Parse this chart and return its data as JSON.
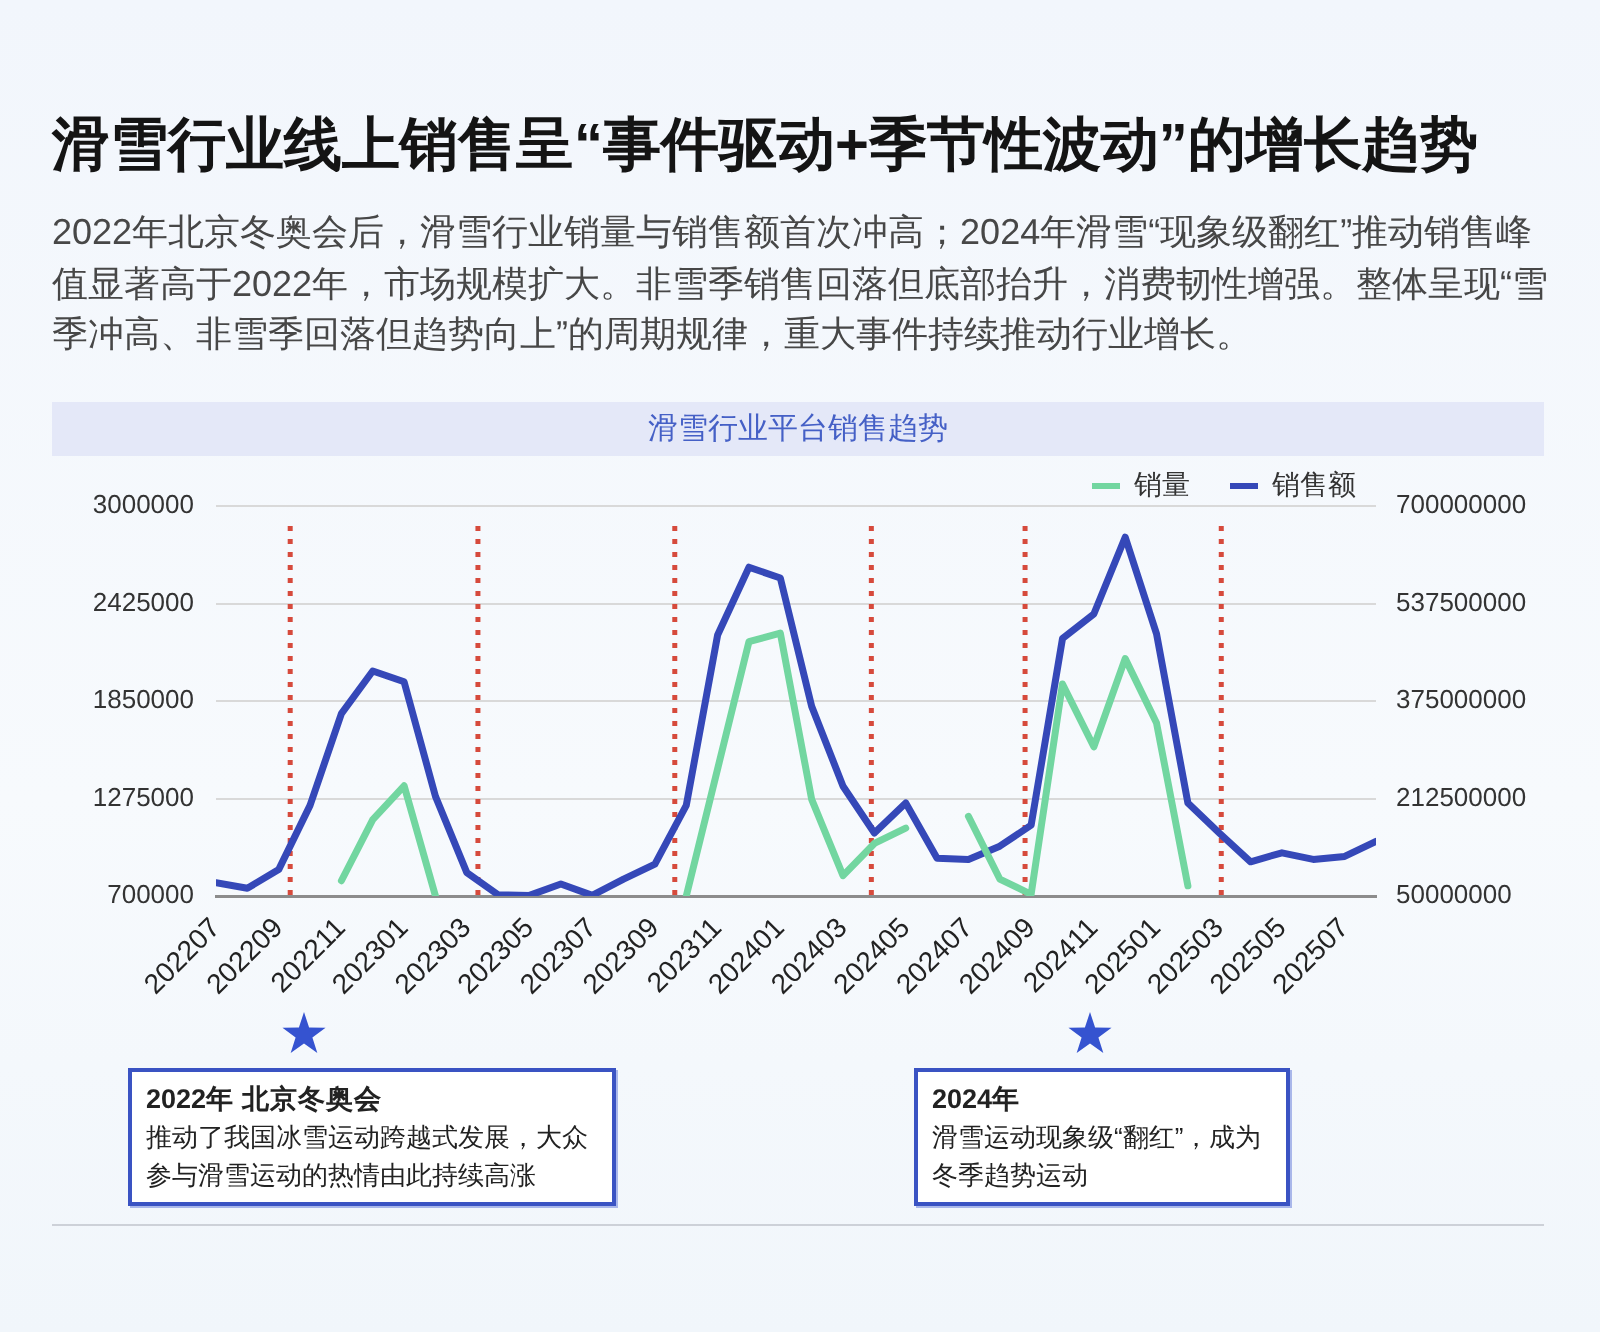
{
  "chart_data": {
    "type": "line",
    "title": "滑雪行业线上销售呈“事件驱动+季节性波动”的增长趋势",
    "subtitle": "2022年北京冬奥会后，滑雪行业销量与销售额首次冲高；2024年滑雪“现象级翻红”推动销售峰值显著高于2022年，市场规模扩大。非雪季销售回落但底部抬升，消费韧性增强。整体呈现“雪季冲高、非雪季回落但趋势向上”的周期规律，重大事件持续推动行业增长。",
    "x": [
      "2022-07",
      "2022-08",
      "2022-09",
      "2022-10",
      "2022-11",
      "2022-12",
      "2023-01",
      "2023-02",
      "2023-03",
      "2023-04",
      "2023-05",
      "2023-06",
      "2023-07",
      "2023-08",
      "2023-09",
      "2023-10",
      "2023-11",
      "2023-12",
      "2024-01",
      "2024-02",
      "2024-03",
      "2024-04",
      "2024-05",
      "2024-06",
      "2024-07",
      "2024-08",
      "2024-09",
      "2024-10",
      "2024-11",
      "2024-12",
      "2025-01",
      "2025-02",
      "2025-03",
      "2025-04",
      "2025-05",
      "2025-06",
      "2025-07",
      "2025-08"
    ],
    "series": [
      {
        "name": "销量",
        "color": "#72d6a0",
        "values": [
          null,
          null,
          null,
          null,
          790000,
          1150000,
          1350000,
          700000,
          null,
          null,
          null,
          null,
          null,
          null,
          null,
          700000,
          1450000,
          2200000,
          2250000,
          1270000,
          820000,
          1010000,
          1100000,
          null,
          1170000,
          800000,
          710000,
          1950000,
          1580000,
          2100000,
          1720000,
          760000,
          null,
          null,
          null,
          null,
          null,
          null
        ]
      },
      {
        "name": "销售额",
        "color": "#3548b8",
        "axis": "y2",
        "values": [
          72000000,
          63000000,
          94000000,
          201000000,
          354000000,
          425000000,
          407000000,
          216000000,
          89000000,
          52000000,
          51000000,
          70000000,
          51000000,
          78000000,
          103000000,
          201000000,
          485000000,
          598000000,
          580000000,
          366000000,
          233000000,
          155000000,
          205000000,
          113000000,
          111000000,
          133000000,
          168000000,
          479000000,
          520000000,
          648000000,
          487000000,
          205000000,
          155000000,
          107000000,
          122000000,
          111000000,
          116000000,
          141000000
        ]
      }
    ],
    "xlim": [
      "2022-07",
      "2025-08"
    ],
    "xticks": [
      {
        "value": "2022-07",
        "label": "202207"
      },
      {
        "value": "2022-09",
        "label": "202209"
      },
      {
        "value": "2022-11",
        "label": "202211"
      },
      {
        "value": "2023-01",
        "label": "202301"
      },
      {
        "value": "2023-03",
        "label": "202303"
      },
      {
        "value": "2023-05",
        "label": "202305"
      },
      {
        "value": "2023-07",
        "label": "202307"
      },
      {
        "value": "2023-09",
        "label": "202309"
      },
      {
        "value": "2023-11",
        "label": "202311"
      },
      {
        "value": "2024-01",
        "label": "202401"
      },
      {
        "value": "2024-03",
        "label": "202403"
      },
      {
        "value": "2024-05",
        "label": "202405"
      },
      {
        "value": "2024-07",
        "label": "202407"
      },
      {
        "value": "2024-09",
        "label": "202409"
      },
      {
        "value": "2024-11",
        "label": "202411"
      },
      {
        "value": "2025-01",
        "label": "202501"
      },
      {
        "value": "2025-03",
        "label": "202503"
      },
      {
        "value": "2025-05",
        "label": "202505"
      },
      {
        "value": "2025-07",
        "label": "202507"
      }
    ],
    "ylim": [
      700000,
      3000000
    ],
    "yticks": [
      700000,
      1275000,
      1850000,
      2425000,
      3000000
    ],
    "y2lim": [
      50000000,
      700000000
    ],
    "y2ticks": [
      50000000,
      212500000,
      375000000,
      537500000,
      700000000
    ],
    "grid": "y",
    "legend": "top right",
    "marker": "none",
    "ref_lines": [
      {
        "axis": "x",
        "value": "2022-09-12",
        "color": "#d64a3c",
        "line_style": "dotted"
      },
      {
        "axis": "x",
        "value": "2023-03-12",
        "color": "#d64a3c",
        "line_style": "dotted"
      },
      {
        "axis": "x",
        "value": "2023-09-20",
        "color": "#d64a3c",
        "line_style": "dotted"
      },
      {
        "axis": "x",
        "value": "2024-03-29",
        "color": "#d64a3c",
        "line_style": "dotted"
      },
      {
        "axis": "x",
        "value": "2024-08-26",
        "color": "#d64a3c",
        "line_style": "dotted"
      },
      {
        "axis": "x",
        "value": "2025-03-03",
        "color": "#d64a3c",
        "line_style": "dotted"
      }
    ],
    "annotations": [
      "滑雪行业平台销售趋势",
      "2022年 北京冬奥会",
      "推动了我国冰雪运动跨越式发展，大众参与滑雪运动的热情由此持续高涨",
      "2024年",
      "滑雪运动现象级“翻红”，成为冬季趋势运动"
    ]
  }
}
